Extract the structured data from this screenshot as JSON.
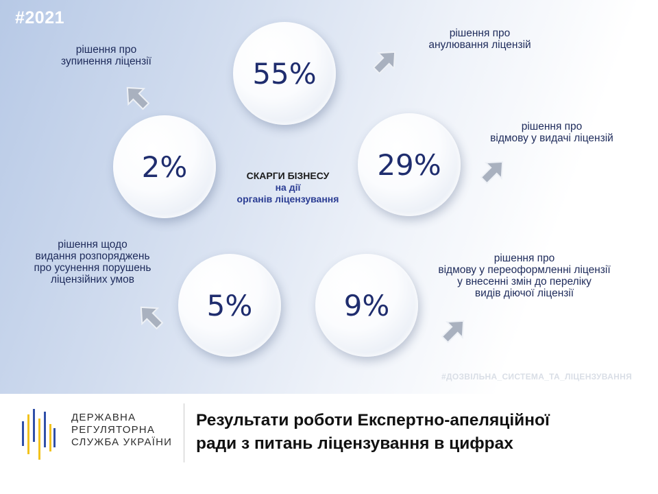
{
  "hashtag_year": "#2021",
  "stats": [
    {
      "value": "55%",
      "caption": [
        "рішення про",
        "анулювання ліцензій"
      ]
    },
    {
      "value": "2%",
      "caption": [
        "рішення про",
        "зупинення ліцензії"
      ]
    },
    {
      "value": "29%",
      "caption": [
        "рішення про",
        "відмову у видачі ліцензій"
      ]
    },
    {
      "value": "5%",
      "caption": [
        "рішення щодо",
        "видання розпоряджень",
        "про усунення порушень",
        "ліцензійних умов"
      ]
    },
    {
      "value": "9%",
      "caption": [
        "рішення про",
        "відмову у переоформленні ліцензії",
        "у внесенні змін до переліку",
        "видів діючої ліцензії"
      ]
    }
  ],
  "center_title": {
    "line1": "СКАРГИ БІЗНЕСУ",
    "line2": "на дії",
    "line3": "органів ліцензування"
  },
  "hashtag_bottom": "#ДОЗВІЛЬНА_СИСТЕМА_ТА_ЛІЦЕНЗУВАННЯ",
  "footer": {
    "org_lines": [
      "ДЕРЖАВНА",
      "РЕГУЛЯТОРНА",
      "СЛУЖБА УКРАЇНИ"
    ],
    "headline_lines": [
      "Результати роботи Експертно-апеляційної",
      "ради з питань ліцензування в цифрах"
    ]
  },
  "colors": {
    "accent_blue": "#1f2d6e",
    "center_blue": "#2a3c93",
    "logo_blue": "#2f4fa8",
    "logo_yellow": "#f2c21b"
  }
}
